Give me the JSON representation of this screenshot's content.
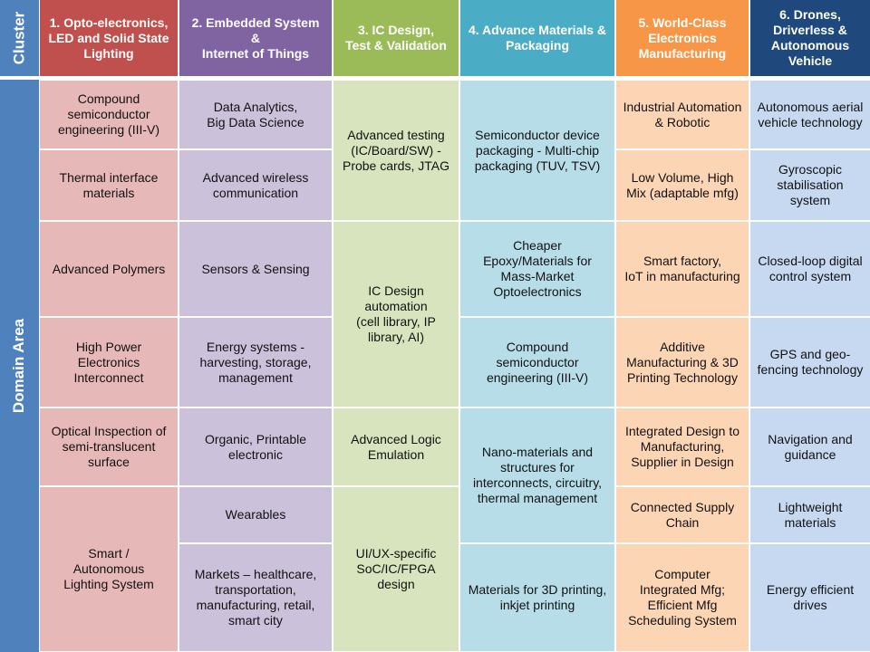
{
  "row_headers": {
    "cluster": "Cluster",
    "domain": "Domain Area"
  },
  "columns": [
    {
      "header": "1. Opto-electronics,\nLED and  Solid State\nLighting",
      "cells": [
        "Compound\nsemiconductor\nengineering (III-V)",
        "Thermal interface\nmaterials",
        "Advanced Polymers",
        "High Power\nElectronics\nInterconnect",
        "Optical Inspection of\nsemi-translucent\nsurface",
        "Smart /\nAutonomous\nLighting System"
      ]
    },
    {
      "header": "2. Embedded System\n&\nInternet of Things",
      "cells": [
        "Data Analytics,\nBig Data Science",
        "Advanced wireless\ncommunication",
        "Sensors & Sensing",
        "Energy systems -\nharvesting, storage,\nmanagement",
        "Organic, Printable\nelectronic",
        "Wearables",
        "Markets – healthcare,\ntransportation,\nmanufacturing, retail,\nsmart city"
      ]
    },
    {
      "header": "3. IC Design,\nTest & Validation",
      "cells": [
        "Advanced testing\n(IC/Board/SW) -\nProbe cards, JTAG",
        "IC Design\nautomation\n(cell library, IP\nlibrary, AI)",
        "Advanced Logic\nEmulation",
        "UI/UX-specific\nSoC/IC/FPGA\ndesign"
      ]
    },
    {
      "header": "4. Advance Materials &\nPackaging",
      "cells": [
        "Semiconductor device\npackaging - Multi-chip\npackaging (TUV, TSV)",
        "Cheaper\nEpoxy/Materials for\nMass-Market\nOptoelectronics",
        "Compound\nsemiconductor\nengineering (III-V)",
        "Nano-materials and\nstructures for\ninterconnects,  circuitry,\nthermal management",
        "Materials for 3D printing,\ninkjet printing"
      ]
    },
    {
      "header": "5. World-Class\nElectronics\nManufacturing",
      "cells": [
        "Industrial Automation\n& Robotic",
        "Low Volume, High\nMix (adaptable mfg)",
        "Smart factory,\nIoT in manufacturing",
        "Additive\nManufacturing & 3D\nPrinting Technology",
        "Integrated Design to\nManufacturing,\nSupplier in Design",
        "Connected Supply\nChain",
        "Computer\nIntegrated Mfg;\nEfficient Mfg\nScheduling System"
      ]
    },
    {
      "header": "6. Drones,\nDriverless &\nAutonomous\nVehicle",
      "cells": [
        "Autonomous aerial\nvehicle technology",
        "Gyroscopic\nstabilisation\nsystem",
        "Closed-loop digital\ncontrol system",
        "GPS and geo-\nfencing technology",
        "Navigation and\nguidance",
        "Lightweight\nmaterials",
        "Energy efficient\ndrives"
      ]
    }
  ]
}
